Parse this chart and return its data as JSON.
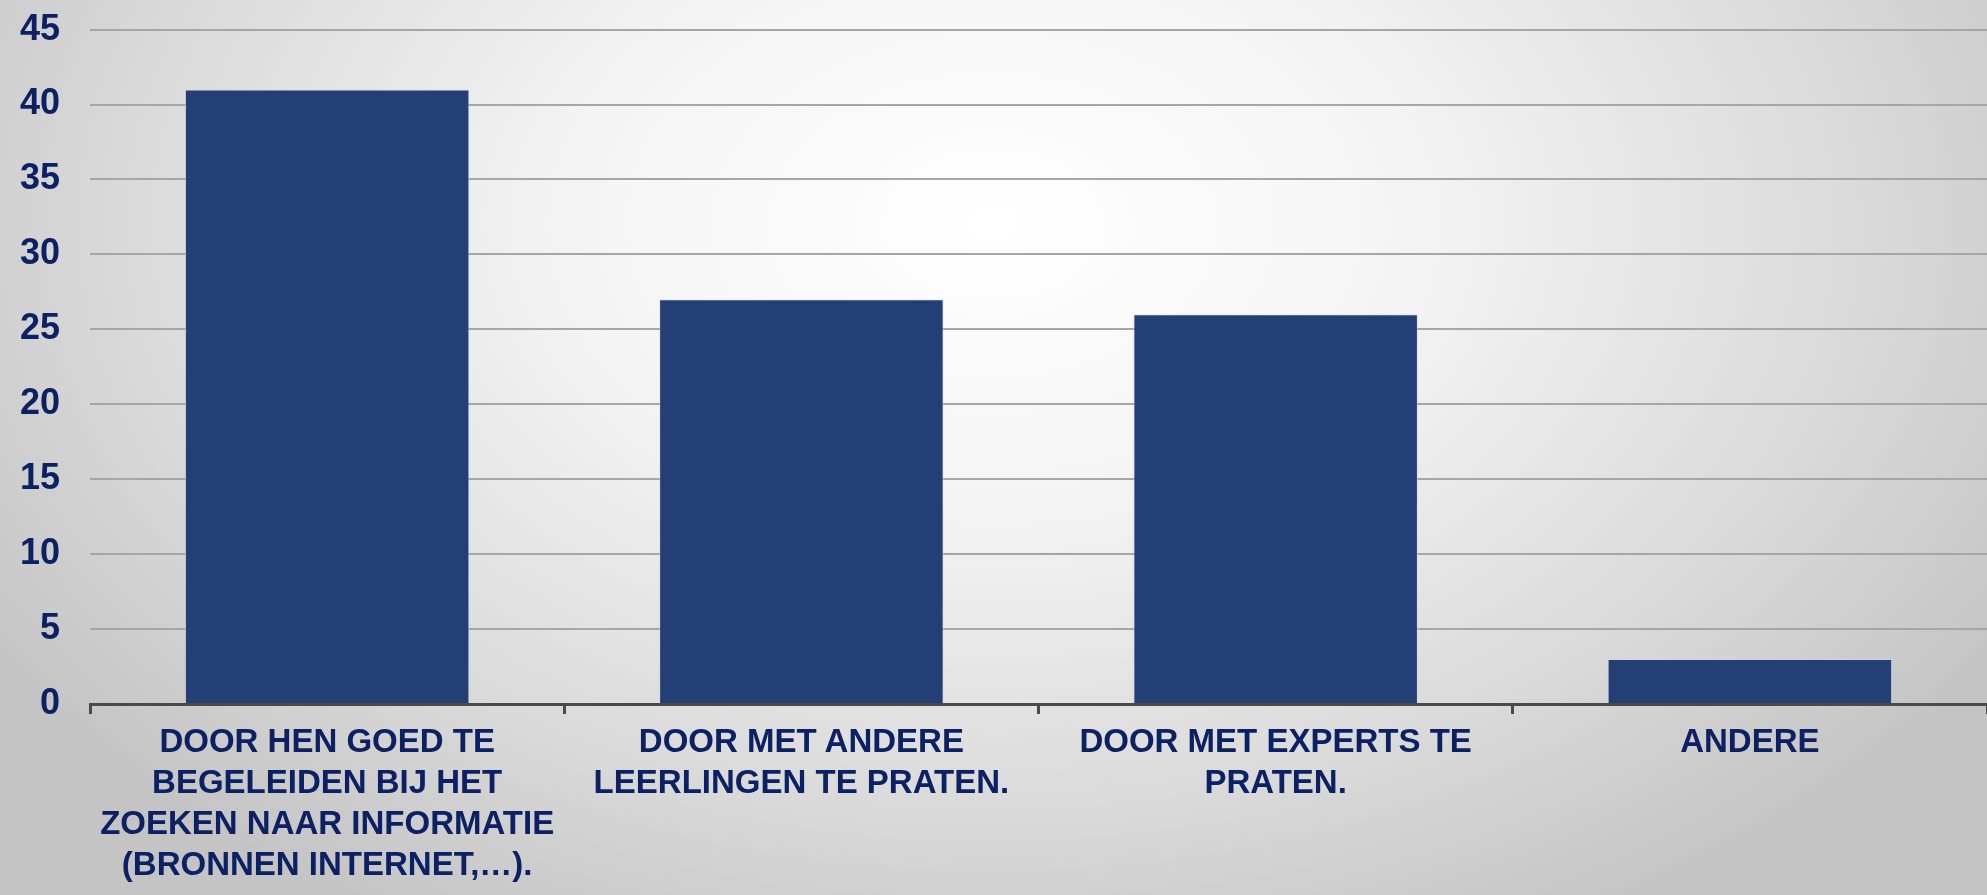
{
  "chart_data": {
    "type": "bar",
    "categories": [
      "DOOR HEN GOED TE BEGELEIDEN BIJ HET ZOEKEN NAAR INFORMATIE (BRONNEN INTERNET,…).",
      "DOOR MET ANDERE LEERLINGEN TE PRATEN.",
      "DOOR MET EXPERTS TE PRATEN.",
      "ANDERE"
    ],
    "values": [
      41,
      27,
      26,
      3
    ],
    "color": "#243f76",
    "ylim": [
      0,
      45
    ],
    "yticks": [
      0,
      5,
      10,
      15,
      20,
      25,
      30,
      35,
      40,
      45
    ],
    "grid": "y"
  }
}
